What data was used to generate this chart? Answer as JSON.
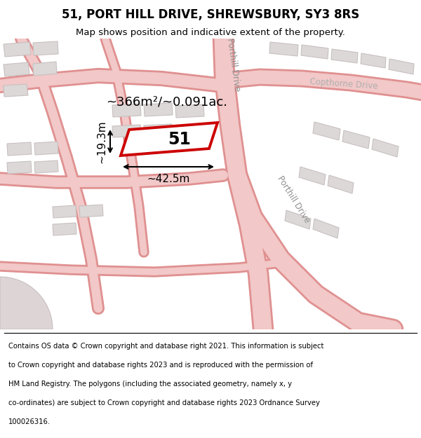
{
  "title_line1": "51, PORT HILL DRIVE, SHREWSBURY, SY3 8RS",
  "title_line2": "Map shows position and indicative extent of the property.",
  "footer_lines": [
    "Contains OS data © Crown copyright and database right 2021. This information is subject",
    "to Crown copyright and database rights 2023 and is reproduced with the permission of",
    "HM Land Registry. The polygons (including the associated geometry, namely x, y",
    "co-ordinates) are subject to Crown copyright and database rights 2023 Ordnance Survey",
    "100026316."
  ],
  "area_label": "~366m²/~0.091ac.",
  "width_label": "~42.5m",
  "height_label": "~19.3m",
  "property_number": "51",
  "map_bg": "#f5efef",
  "road_fill": "#f2c8c8",
  "road_edge": "#e09090",
  "building_fill": "#ddd8d8",
  "building_edge": "#c8c0c0",
  "highlight_color": "#cc0000",
  "title_fontsize": 12,
  "subtitle_fontsize": 9.5,
  "footer_fontsize": 7.2
}
